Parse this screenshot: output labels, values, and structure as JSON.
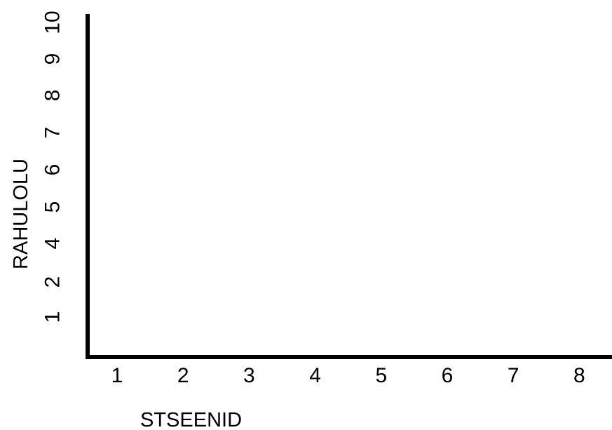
{
  "chart_data": {
    "type": "line",
    "title": "",
    "xlabel": "STSEENID",
    "ylabel": "RAHULOLU",
    "x_ticks": [
      "1",
      "2",
      "3",
      "4",
      "5",
      "6",
      "7",
      "8"
    ],
    "y_ticks": [
      "1",
      "2",
      "4",
      "5",
      "6",
      "7",
      "8",
      "9",
      "10"
    ],
    "series": [],
    "grid": false,
    "legend": "none",
    "axis_color": "#000000"
  }
}
